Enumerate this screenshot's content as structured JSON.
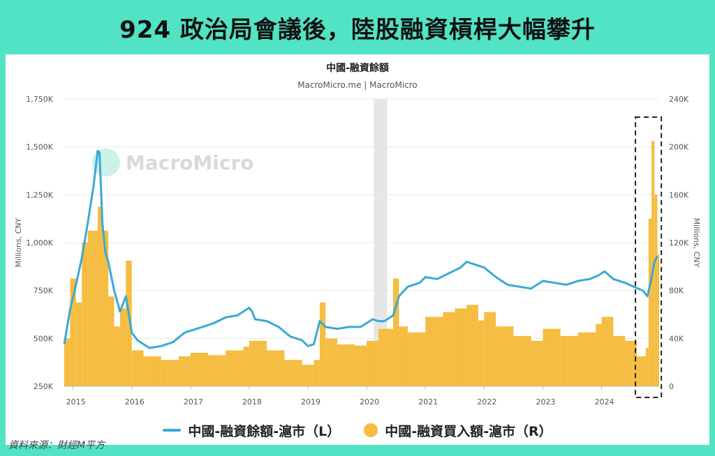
{
  "banner": {
    "title": "924 政治局會議後，陸股融資槓桿大幅攀升"
  },
  "source": "資料來源：財經M平方",
  "watermark": "MacroMicro",
  "colors": {
    "line": "#3aa9d3",
    "bars": "#f5bd41",
    "recession_band": "#e6e6e6",
    "background": "#52e3c4"
  },
  "chart_data": {
    "type": "bar+line",
    "title": "中國-融資餘額",
    "subtitle": "MacroMicro.me | MacroMicro",
    "ylabel_left": "Millions, CNY",
    "ylabel_right": "Millions, CNY",
    "x_range": [
      2014.85,
      2024.98
    ],
    "ylim_left": [
      250000,
      1750000
    ],
    "ylim_right": [
      0,
      240000
    ],
    "left_ticks": [
      "250K",
      "500K",
      "750K",
      "1,000K",
      "1,250K",
      "1,500K",
      "1,750K"
    ],
    "left_tick_values": [
      250000,
      500000,
      750000,
      1000000,
      1250000,
      1500000,
      1750000
    ],
    "right_ticks": [
      "0",
      "40K",
      "80K",
      "120K",
      "160K",
      "200K",
      "240K"
    ],
    "right_tick_values": [
      0,
      40000,
      80000,
      120000,
      160000,
      200000,
      240000
    ],
    "x_ticks": [
      "2015",
      "2016",
      "2017",
      "2018",
      "2019",
      "2020",
      "2021",
      "2022",
      "2023",
      "2024"
    ],
    "x_tick_values": [
      2015,
      2016,
      2017,
      2018,
      2019,
      2020,
      2021,
      2022,
      2023,
      2024
    ],
    "shaded_band": [
      2020.12,
      2020.35
    ],
    "highlight_box": [
      2024.6,
      2024.97
    ],
    "series": [
      {
        "name": "中國-融資餘額-滬市（L）",
        "type": "line",
        "axis": "left",
        "x": [
          2014.85,
          2014.95,
          2015.05,
          2015.15,
          2015.25,
          2015.35,
          2015.42,
          2015.45,
          2015.5,
          2015.55,
          2015.6,
          2015.7,
          2015.8,
          2015.9,
          2016.0,
          2016.1,
          2016.2,
          2016.3,
          2016.5,
          2016.7,
          2016.9,
          2017.0,
          2017.2,
          2017.4,
          2017.6,
          2017.8,
          2018.0,
          2018.05,
          2018.1,
          2018.3,
          2018.5,
          2018.7,
          2018.9,
          2019.0,
          2019.1,
          2019.2,
          2019.3,
          2019.5,
          2019.7,
          2019.9,
          2020.0,
          2020.1,
          2020.2,
          2020.3,
          2020.45,
          2020.55,
          2020.7,
          2020.9,
          2021.0,
          2021.2,
          2021.4,
          2021.6,
          2021.7,
          2021.8,
          2022.0,
          2022.2,
          2022.4,
          2022.6,
          2022.8,
          2023.0,
          2023.2,
          2023.4,
          2023.6,
          2023.8,
          2023.95,
          2024.05,
          2024.2,
          2024.4,
          2024.55,
          2024.7,
          2024.78,
          2024.84,
          2024.9,
          2024.95
        ],
        "values": [
          470000,
          650000,
          780000,
          920000,
          1100000,
          1300000,
          1480000,
          1470000,
          1100000,
          950000,
          900000,
          750000,
          640000,
          720000,
          530000,
          490000,
          470000,
          450000,
          460000,
          480000,
          530000,
          540000,
          560000,
          580000,
          610000,
          620000,
          660000,
          640000,
          600000,
          590000,
          560000,
          510000,
          490000,
          460000,
          470000,
          590000,
          560000,
          550000,
          560000,
          560000,
          580000,
          600000,
          590000,
          590000,
          620000,
          720000,
          770000,
          790000,
          820000,
          810000,
          840000,
          870000,
          900000,
          890000,
          870000,
          820000,
          780000,
          770000,
          760000,
          800000,
          790000,
          780000,
          800000,
          810000,
          830000,
          850000,
          810000,
          790000,
          770000,
          750000,
          720000,
          800000,
          900000,
          930000
        ]
      },
      {
        "name": "中國-融資買入額-滬市（R）",
        "type": "bar",
        "axis": "right",
        "x": [
          2014.85,
          2014.95,
          2015.05,
          2015.15,
          2015.25,
          2015.35,
          2015.42,
          2015.5,
          2015.6,
          2015.7,
          2015.8,
          2015.9,
          2016.0,
          2016.2,
          2016.5,
          2016.8,
          2017.0,
          2017.3,
          2017.6,
          2017.9,
          2018.0,
          2018.3,
          2018.6,
          2018.9,
          2019.1,
          2019.2,
          2019.3,
          2019.5,
          2019.8,
          2020.0,
          2020.2,
          2020.45,
          2020.55,
          2020.7,
          2021.0,
          2021.3,
          2021.5,
          2021.7,
          2021.9,
          2022.0,
          2022.2,
          2022.5,
          2022.8,
          2023.0,
          2023.3,
          2023.6,
          2023.9,
          2024.0,
          2024.2,
          2024.4,
          2024.6,
          2024.75,
          2024.8,
          2024.85,
          2024.9,
          2024.95
        ],
        "values": [
          40000,
          90000,
          70000,
          120000,
          130000,
          130000,
          150000,
          130000,
          75000,
          50000,
          65000,
          105000,
          30000,
          25000,
          22000,
          25000,
          28000,
          26000,
          30000,
          33000,
          38000,
          30000,
          22000,
          18000,
          22000,
          70000,
          40000,
          35000,
          34000,
          38000,
          48000,
          90000,
          50000,
          45000,
          58000,
          62000,
          65000,
          68000,
          55000,
          62000,
          50000,
          42000,
          38000,
          48000,
          42000,
          45000,
          52000,
          58000,
          42000,
          38000,
          25000,
          32000,
          140000,
          205000,
          160000,
          110000
        ]
      }
    ]
  },
  "legend": {
    "line_label": "中國-融資餘額-滬市（L）",
    "bar_label": "中國-融資買入額-滬市（R）"
  }
}
